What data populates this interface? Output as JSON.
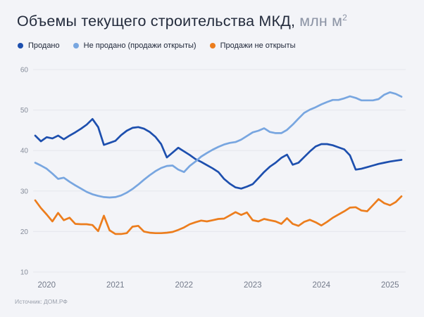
{
  "title": {
    "main": "Объемы текущего строительства МКД,",
    "unit": "млн м",
    "unit_sup": "2"
  },
  "source": "Источник: ДОМ.РФ",
  "chart_data": {
    "type": "line",
    "title": "Объемы текущего строительства МКД, млн м²",
    "unit": "млн м²",
    "x_interval": "monthly",
    "x_start": "2019-11",
    "x_end": "2025-03",
    "x_tick_labels": [
      "2020",
      "2021",
      "2022",
      "2023",
      "2024",
      "2025"
    ],
    "y_ticks": [
      10,
      20,
      30,
      40,
      50,
      60
    ],
    "ylim": [
      10,
      60
    ],
    "grid": "horizontal",
    "legend_position": "top-left",
    "series": [
      {
        "name": "Продано",
        "color": "#1d4fae",
        "values": [
          43.7,
          42.3,
          43.3,
          43.0,
          43.7,
          42.8,
          43.7,
          44.5,
          45.4,
          46.4,
          47.8,
          45.8,
          41.4,
          41.9,
          42.4,
          43.8,
          44.9,
          45.6,
          45.8,
          45.4,
          44.6,
          43.4,
          41.6,
          38.3,
          39.5,
          40.7,
          39.8,
          38.9,
          37.9,
          37.2,
          36.4,
          35.6,
          34.7,
          33.0,
          31.8,
          30.9,
          30.6,
          31.1,
          31.7,
          33.2,
          34.7,
          36.0,
          37.0,
          38.2,
          39.0,
          36.5,
          37.0,
          38.4,
          39.8,
          41.0,
          41.6,
          41.6,
          41.3,
          40.8,
          40.3,
          38.8,
          35.3,
          35.5,
          35.9,
          36.3,
          36.7,
          37.0,
          37.3,
          37.5,
          37.7
        ]
      },
      {
        "name": "Не продано (продажи открыты)",
        "color": "#78a6e0",
        "values": [
          37.0,
          36.3,
          35.5,
          34.3,
          33.0,
          33.3,
          32.3,
          31.4,
          30.6,
          29.8,
          29.2,
          28.8,
          28.5,
          28.4,
          28.5,
          28.9,
          29.6,
          30.5,
          31.6,
          32.8,
          33.9,
          34.9,
          35.7,
          36.2,
          36.3,
          35.3,
          34.7,
          36.2,
          37.3,
          38.5,
          39.4,
          40.2,
          40.9,
          41.5,
          41.9,
          42.1,
          42.7,
          43.6,
          44.5,
          44.9,
          45.5,
          44.6,
          44.3,
          44.3,
          45.1,
          46.4,
          47.9,
          49.3,
          50.1,
          50.7,
          51.4,
          52.0,
          52.5,
          52.5,
          52.9,
          53.4,
          53.0,
          52.4,
          52.4,
          52.4,
          52.7,
          53.8,
          54.4,
          54.0,
          53.3
        ]
      },
      {
        "name": "Продажи не открыты",
        "color": "#ec7d1d",
        "values": [
          27.7,
          25.8,
          24.2,
          22.5,
          24.6,
          22.8,
          23.4,
          21.9,
          21.8,
          21.8,
          21.6,
          20.1,
          23.9,
          20.3,
          19.4,
          19.4,
          19.6,
          21.2,
          21.4,
          20.0,
          19.7,
          19.6,
          19.6,
          19.7,
          19.9,
          20.4,
          21.0,
          21.8,
          22.3,
          22.7,
          22.5,
          22.8,
          23.1,
          23.2,
          24.0,
          24.8,
          24.1,
          24.7,
          22.8,
          22.5,
          23.1,
          22.8,
          22.5,
          21.9,
          23.3,
          21.9,
          21.4,
          22.4,
          22.9,
          22.3,
          21.5,
          22.4,
          23.4,
          24.2,
          25.0,
          25.9,
          26.0,
          25.2,
          25.0,
          26.5,
          28.0,
          27.0,
          26.5,
          27.3,
          28.7
        ]
      }
    ]
  }
}
